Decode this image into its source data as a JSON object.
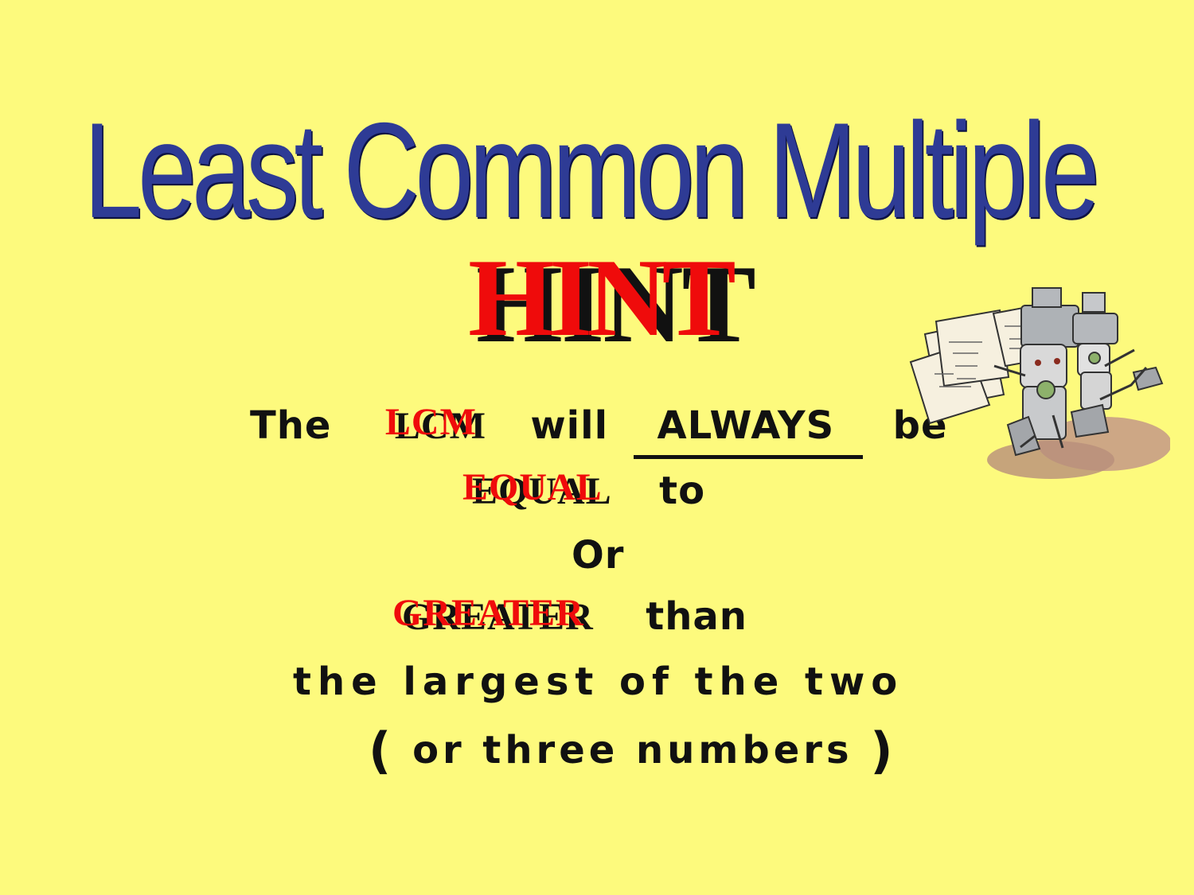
{
  "title": "Least Common Multiple",
  "hint": "HINT",
  "lines": {
    "line1": {
      "part1": "The",
      "highlight": "LCM",
      "part2": "will",
      "underline": "ALWAYS",
      "part3": "be"
    },
    "line2": {
      "highlight": "EQUAL",
      "part2": "to"
    },
    "line3": "Or",
    "line4": {
      "highlight": "GREATER",
      "part2": "than"
    },
    "line5": "the largest of the two",
    "line6": {
      "open": "(",
      "text": "or three numbers",
      "close": ")"
    }
  },
  "colors": {
    "background": "#fdfa7d",
    "title": "#2e3b95",
    "highlight": "#ef0b0b",
    "text": "#111111"
  },
  "icons": {
    "robot": "robot-illustration-icon"
  }
}
